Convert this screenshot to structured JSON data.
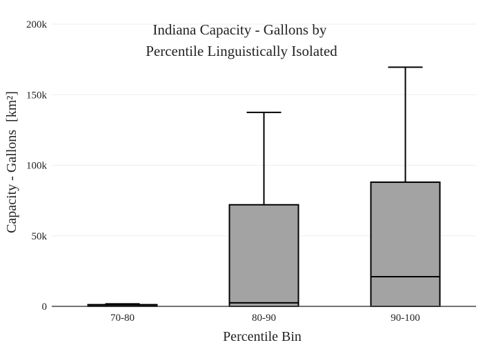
{
  "chart_data": {
    "type": "box",
    "title_lines": [
      "Indiana Capacity - Gallons by",
      "Percentile Linguistically Isolated"
    ],
    "xlabel": "Percentile Bin",
    "ylabel": "Capacity - Gallons",
    "ylabel_unit": "[km²]",
    "categories": [
      "70-80",
      "80-90",
      "90-100"
    ],
    "ylim": [
      0,
      200000
    ],
    "yticks": [
      0,
      50000,
      100000,
      150000,
      200000
    ],
    "ytick_labels": [
      "0",
      "50k",
      "100k",
      "150k",
      "200k"
    ],
    "grid": true,
    "legend": "none",
    "boxes": [
      {
        "category": "70-80",
        "min": 0,
        "q1": 0,
        "median": 500,
        "q3": 1200,
        "max": 1800
      },
      {
        "category": "80-90",
        "min": 0,
        "q1": 0,
        "median": 2500,
        "q3": 72000,
        "max": 137500
      },
      {
        "category": "90-100",
        "min": 0,
        "q1": 0,
        "median": 21000,
        "q3": 88000,
        "max": 169500
      }
    ],
    "colors": {
      "box_fill": "#a3a3a3",
      "box_stroke": "#000000",
      "grid": "#eeeeee",
      "axis": "#444444"
    }
  }
}
